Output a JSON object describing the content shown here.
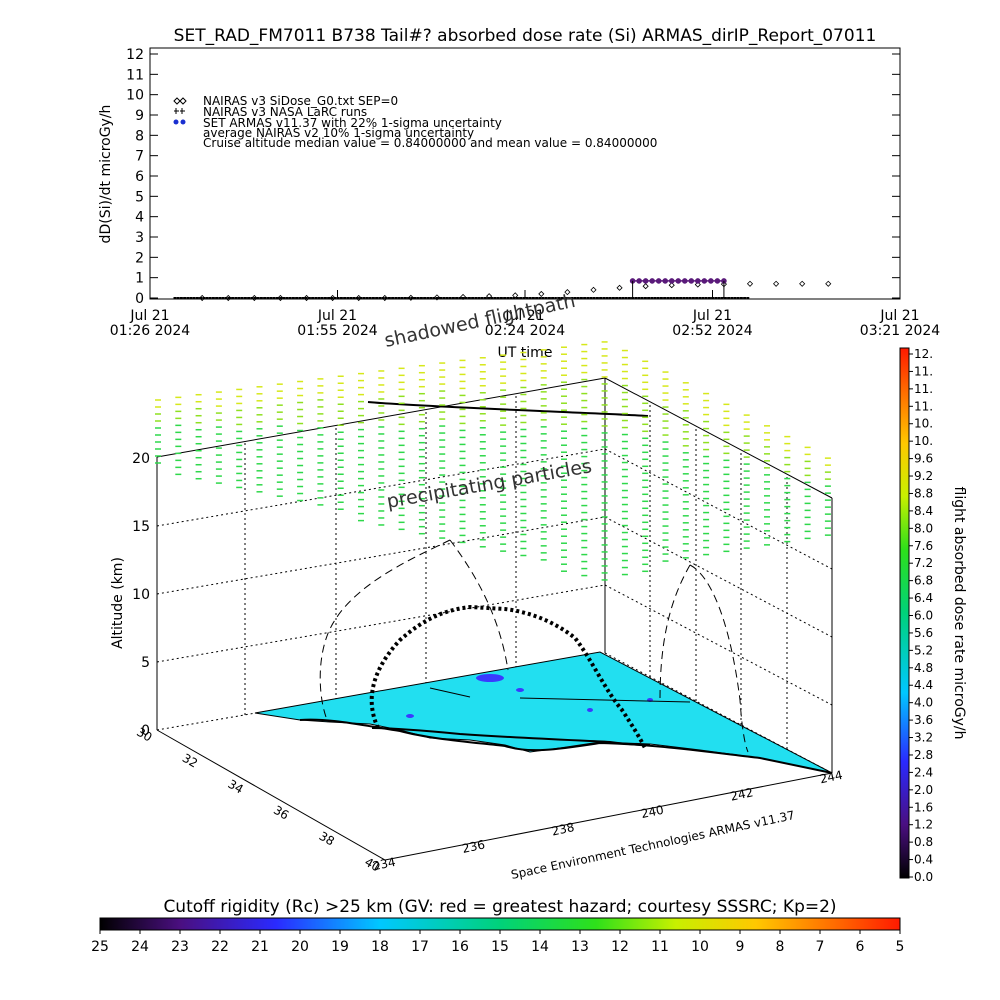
{
  "chart_data": [
    {
      "type": "scatter",
      "title": "SET_RAD_FM7011  B738 Tail#? absorbed dose rate (Si) ARMAS_dirIP_Report_07011",
      "xlabel": "UT time",
      "ylabel": "dD(Si)/dt microGy/h",
      "ylim": [
        0,
        12
      ],
      "yticks": [
        "0",
        "1",
        "2",
        "3",
        "4",
        "5",
        "6",
        "7",
        "8",
        "9",
        "10",
        "11",
        "12"
      ],
      "xticks": [
        {
          "line1": "Jul 21",
          "line2": "01:26 2024"
        },
        {
          "line1": "Jul 21",
          "line2": "01:55 2024"
        },
        {
          "line1": "Jul 21",
          "line2": "02:24 2024"
        },
        {
          "line1": "Jul 21",
          "line2": "02:52 2024"
        },
        {
          "line1": "Jul 21",
          "line2": "03:21 2024"
        }
      ],
      "x_minutes_range": [
        0,
        115
      ],
      "legend": [
        "NAIRAS v3 SiDose_G0.txt SEP=0",
        "NAIRAS v3 NASA LaRC runs",
        "SET ARMAS v11.37 with 22% 1-sigma uncertainty",
        "average NAIRAS v2 10% 1-sigma uncertainty",
        "Cruise altitude median value = 0.84000000 and mean value = 0.84000000"
      ],
      "legend_placement": "top-left",
      "series": [
        {
          "name": "NAIRAS v3 SiDose_G0.txt SEP=0",
          "marker": "diamond",
          "x": [
            8,
            12,
            16,
            20,
            24,
            28,
            32,
            36,
            40,
            44,
            48,
            52,
            56,
            60,
            64,
            68,
            72,
            76,
            80,
            84,
            88,
            92,
            96,
            100,
            104
          ],
          "y": [
            0.0,
            0.0,
            0.0,
            0.0,
            0.0,
            0.0,
            0.0,
            0.0,
            0.01,
            0.03,
            0.05,
            0.09,
            0.13,
            0.2,
            0.29,
            0.4,
            0.5,
            0.58,
            0.63,
            0.66,
            0.68,
            0.7,
            0.7,
            0.7,
            0.7
          ]
        },
        {
          "name": "SET ARMAS v11.37 with 22% 1-sigma uncertainty",
          "marker": "dot",
          "color": "#5a1a7a",
          "x": [
            74,
            75,
            76,
            77,
            78,
            79,
            80,
            81,
            82,
            83,
            84,
            85,
            86,
            87,
            88
          ],
          "y": [
            0.84,
            0.84,
            0.84,
            0.84,
            0.84,
            0.84,
            0.84,
            0.84,
            0.84,
            0.84,
            0.84,
            0.84,
            0.84,
            0.84,
            0.84
          ]
        }
      ]
    },
    {
      "type": "scatter",
      "title": "",
      "zlabel": "Altitude (km)",
      "zticks": [
        "0",
        "5",
        "10",
        "15",
        "20"
      ],
      "yticks": [
        "30",
        "32",
        "34",
        "36",
        "38",
        "40"
      ],
      "xticks": [
        "234",
        "236",
        "238",
        "240",
        "242",
        "244"
      ],
      "annotations": [
        "shadowed flightpath",
        "precipitating particles"
      ],
      "credit": "Space Environment Technologies ARMAS v11.37",
      "surface_color": "#22dff0"
    }
  ],
  "dose_colorbar": {
    "label": "flight absorbed dose rate microGy/h",
    "ticks": [
      "0.0",
      "0.4",
      "0.8",
      "1.2",
      "1.6",
      "2.0",
      "2.4",
      "2.8",
      "3.2",
      "3.6",
      "4.0",
      "4.4",
      "4.8",
      "5.2",
      "5.6",
      "6.0",
      "6.4",
      "6.8",
      "7.2",
      "7.6",
      "8.0",
      "8.4",
      "8.8",
      "9.2",
      "9.6",
      "10.",
      "10.",
      "11.",
      "11.",
      "11.",
      "12."
    ]
  },
  "rigidity_colorbar": {
    "label": "Cutoff rigidity (Rc) >25 km (GV: red = greatest hazard; courtesy SSSRC; Kp=2)",
    "ticks": [
      "25",
      "24",
      "23",
      "22",
      "21",
      "20",
      "19",
      "18",
      "17",
      "16",
      "15",
      "14",
      "13",
      "12",
      "11",
      "10",
      "9",
      "8",
      "7",
      "6",
      "5"
    ]
  }
}
